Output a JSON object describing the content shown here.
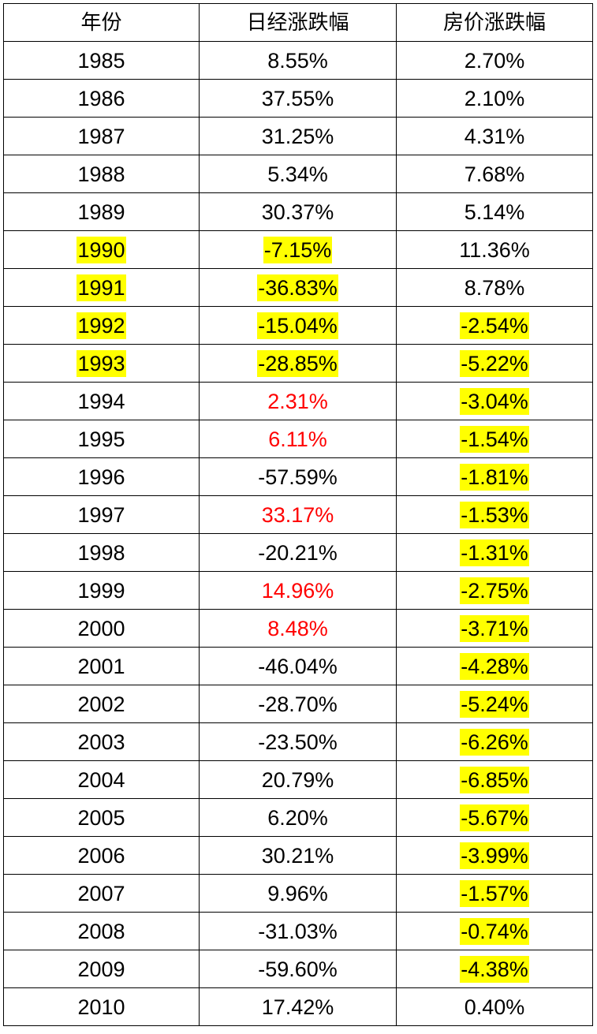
{
  "table": {
    "headers": [
      "年份",
      "日经涨跌幅",
      "房价涨跌幅"
    ],
    "rows": [
      {
        "year": "1985",
        "nikkei": "8.55%",
        "house": "2.70%",
        "year_hl": false,
        "nikkei_hl": false,
        "nikkei_red": false,
        "house_hl": false
      },
      {
        "year": "1986",
        "nikkei": "37.55%",
        "house": "2.10%",
        "year_hl": false,
        "nikkei_hl": false,
        "nikkei_red": false,
        "house_hl": false
      },
      {
        "year": "1987",
        "nikkei": "31.25%",
        "house": "4.31%",
        "year_hl": false,
        "nikkei_hl": false,
        "nikkei_red": false,
        "house_hl": false
      },
      {
        "year": "1988",
        "nikkei": "5.34%",
        "house": "7.68%",
        "year_hl": false,
        "nikkei_hl": false,
        "nikkei_red": false,
        "house_hl": false
      },
      {
        "year": "1989",
        "nikkei": "30.37%",
        "house": "5.14%",
        "year_hl": false,
        "nikkei_hl": false,
        "nikkei_red": false,
        "house_hl": false
      },
      {
        "year": "1990",
        "nikkei": "-7.15%",
        "house": "11.36%",
        "year_hl": true,
        "nikkei_hl": true,
        "nikkei_red": false,
        "house_hl": false
      },
      {
        "year": "1991",
        "nikkei": "-36.83%",
        "house": "8.78%",
        "year_hl": true,
        "nikkei_hl": true,
        "nikkei_red": false,
        "house_hl": false
      },
      {
        "year": "1992",
        "nikkei": "-15.04%",
        "house": "-2.54%",
        "year_hl": true,
        "nikkei_hl": true,
        "nikkei_red": false,
        "house_hl": true
      },
      {
        "year": "1993",
        "nikkei": "-28.85%",
        "house": "-5.22%",
        "year_hl": true,
        "nikkei_hl": true,
        "nikkei_red": false,
        "house_hl": true
      },
      {
        "year": "1994",
        "nikkei": "2.31%",
        "house": "-3.04%",
        "year_hl": false,
        "nikkei_hl": false,
        "nikkei_red": true,
        "house_hl": true
      },
      {
        "year": "1995",
        "nikkei": "6.11%",
        "house": "-1.54%",
        "year_hl": false,
        "nikkei_hl": false,
        "nikkei_red": true,
        "house_hl": true
      },
      {
        "year": "1996",
        "nikkei": "-57.59%",
        "house": "-1.81%",
        "year_hl": false,
        "nikkei_hl": false,
        "nikkei_red": false,
        "house_hl": true
      },
      {
        "year": "1997",
        "nikkei": "33.17%",
        "house": "-1.53%",
        "year_hl": false,
        "nikkei_hl": false,
        "nikkei_red": true,
        "house_hl": true
      },
      {
        "year": "1998",
        "nikkei": "-20.21%",
        "house": "-1.31%",
        "year_hl": false,
        "nikkei_hl": false,
        "nikkei_red": false,
        "house_hl": true
      },
      {
        "year": "1999",
        "nikkei": "14.96%",
        "house": "-2.75%",
        "year_hl": false,
        "nikkei_hl": false,
        "nikkei_red": true,
        "house_hl": true
      },
      {
        "year": "2000",
        "nikkei": "8.48%",
        "house": "-3.71%",
        "year_hl": false,
        "nikkei_hl": false,
        "nikkei_red": true,
        "house_hl": true
      },
      {
        "year": "2001",
        "nikkei": "-46.04%",
        "house": "-4.28%",
        "year_hl": false,
        "nikkei_hl": false,
        "nikkei_red": false,
        "house_hl": true
      },
      {
        "year": "2002",
        "nikkei": "-28.70%",
        "house": "-5.24%",
        "year_hl": false,
        "nikkei_hl": false,
        "nikkei_red": false,
        "house_hl": true
      },
      {
        "year": "2003",
        "nikkei": "-23.50%",
        "house": "-6.26%",
        "year_hl": false,
        "nikkei_hl": false,
        "nikkei_red": false,
        "house_hl": true
      },
      {
        "year": "2004",
        "nikkei": "20.79%",
        "house": "-6.85%",
        "year_hl": false,
        "nikkei_hl": false,
        "nikkei_red": false,
        "house_hl": true
      },
      {
        "year": "2005",
        "nikkei": "6.20%",
        "house": "-5.67%",
        "year_hl": false,
        "nikkei_hl": false,
        "nikkei_red": false,
        "house_hl": true
      },
      {
        "year": "2006",
        "nikkei": "30.21%",
        "house": "-3.99%",
        "year_hl": false,
        "nikkei_hl": false,
        "nikkei_red": false,
        "house_hl": true
      },
      {
        "year": "2007",
        "nikkei": "9.96%",
        "house": "-1.57%",
        "year_hl": false,
        "nikkei_hl": false,
        "nikkei_red": false,
        "house_hl": true
      },
      {
        "year": "2008",
        "nikkei": "-31.03%",
        "house": "-0.74%",
        "year_hl": false,
        "nikkei_hl": false,
        "nikkei_red": false,
        "house_hl": true
      },
      {
        "year": "2009",
        "nikkei": "-59.60%",
        "house": "-4.38%",
        "year_hl": false,
        "nikkei_hl": false,
        "nikkei_red": false,
        "house_hl": true
      },
      {
        "year": "2010",
        "nikkei": "17.42%",
        "house": "0.40%",
        "year_hl": false,
        "nikkei_hl": false,
        "nikkei_red": false,
        "house_hl": false
      }
    ]
  },
  "colors": {
    "highlight": "#ffff00",
    "emphasis_text": "#ff0000",
    "text": "#000000",
    "border": "#000000"
  }
}
